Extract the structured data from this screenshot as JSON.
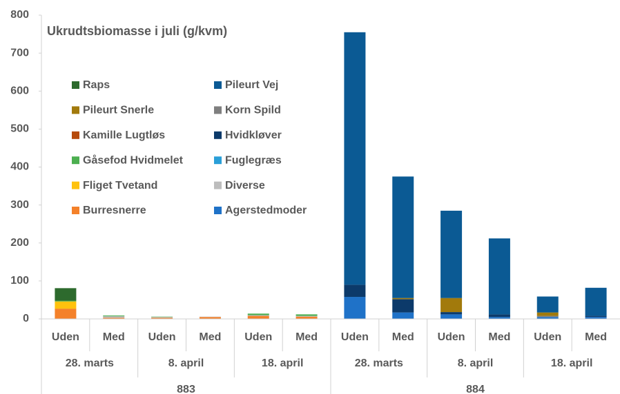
{
  "chart_data": {
    "type": "stacked_bar",
    "title": "Ukrudtsbiomasse i juli (g/kvm)",
    "categories": [
      "Uden",
      "Med",
      "Uden",
      "Med",
      "Uden",
      "Med",
      "Uden",
      "Med",
      "Uden",
      "Med",
      "Uden",
      "Med"
    ],
    "category_groups": [
      "28. marts",
      "8. april",
      "18. april",
      "28. marts",
      "8. april",
      "18. april"
    ],
    "category_supergroups": [
      "883",
      "884"
    ],
    "ylim": [
      0,
      800
    ],
    "yticks": [
      0,
      100,
      200,
      300,
      400,
      500,
      600,
      700,
      800
    ],
    "series": [
      {
        "name": "Agerstedmoder",
        "color": "#1f72c8",
        "values": [
          0,
          0,
          0,
          0,
          0,
          0,
          58,
          17,
          12,
          5,
          5,
          5
        ]
      },
      {
        "name": "Burresnerre",
        "color": "#f4812a",
        "values": [
          27,
          3,
          3,
          5,
          8,
          6,
          0,
          0,
          0,
          0,
          0,
          0
        ]
      },
      {
        "name": "Diverse",
        "color": "#bdbdbd",
        "values": [
          0,
          4,
          2,
          1,
          2,
          2,
          0,
          0,
          0,
          0,
          0,
          0
        ]
      },
      {
        "name": "Fliget Tvetand",
        "color": "#ffc20e",
        "values": [
          19,
          0,
          0,
          0,
          0,
          0,
          0,
          0,
          0,
          0,
          0,
          0
        ]
      },
      {
        "name": "Fuglegræs",
        "color": "#2a9fd8",
        "values": [
          0,
          0,
          0,
          0,
          0,
          0,
          0,
          0,
          0,
          0,
          0,
          0
        ]
      },
      {
        "name": "Gåsefod Hvidmelet",
        "color": "#4caf50",
        "values": [
          2,
          2,
          1,
          0,
          4,
          4,
          0,
          0,
          0,
          0,
          0,
          0
        ]
      },
      {
        "name": "Hvidkløver",
        "color": "#0c3a6a",
        "values": [
          0,
          0,
          0,
          0,
          0,
          0,
          32,
          35,
          6,
          7,
          0,
          3
        ]
      },
      {
        "name": "Kamille Lugtløs",
        "color": "#b64a0b",
        "values": [
          0,
          0,
          0,
          0,
          0,
          0,
          0,
          0,
          0,
          0,
          0,
          0
        ]
      },
      {
        "name": "Korn Spild",
        "color": "#7f7f7f",
        "values": [
          0,
          0,
          0,
          0,
          0,
          0,
          0,
          0,
          0,
          0,
          3,
          0
        ]
      },
      {
        "name": "Pileurt Snerle",
        "color": "#a27a0c",
        "values": [
          0,
          0,
          0,
          0,
          0,
          0,
          0,
          3,
          37,
          0,
          9,
          0
        ]
      },
      {
        "name": "Pileurt Vej",
        "color": "#0b5a94",
        "values": [
          0,
          0,
          0,
          0,
          0,
          0,
          665,
          320,
          230,
          200,
          42,
          74
        ]
      },
      {
        "name": "Raps",
        "color": "#2d6a2d",
        "values": [
          33,
          0,
          0,
          0,
          0,
          0,
          0,
          0,
          0,
          0,
          0,
          0
        ]
      }
    ]
  }
}
